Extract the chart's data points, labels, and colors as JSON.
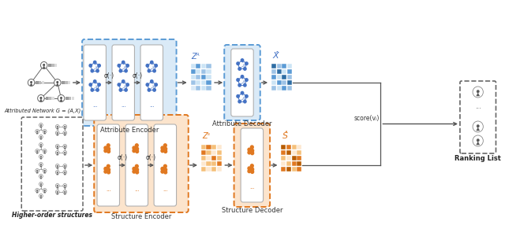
{
  "bg_color": "#ffffff",
  "blue_box_color": "#daeaf7",
  "blue_border": "#5b9bd5",
  "orange_box_color": "#fce4cc",
  "orange_border": "#e07820",
  "dashed_border": "#666666",
  "blue_node_color": "#4472c4",
  "orange_node_color": "#e07820",
  "labels": {
    "attr_network": "Attributed Network G = (A,X)",
    "attr_encoder": "Attribute Encoder",
    "attr_decoder": "Attribute Decoder",
    "higher_order": "Higher-order structures",
    "struct_encoder": "Structure Encoder",
    "struct_decoder": "Structure Decoder",
    "ranking_list": "Ranking List",
    "score": "score(vᵢ)",
    "Z_A": "Zᴬ",
    "Z_S": "Zˢ",
    "X_hat": "X̂",
    "S_hat": "Ś̂",
    "sigma": "σ(·)"
  },
  "blue_matrix_colors": [
    [
      "#cce4f5",
      "#5b9bd5",
      "#cce4f5",
      "#9dc3e6"
    ],
    [
      "#5b9bd5",
      "#cce4f5",
      "#9dc3e6",
      "#cce4f5"
    ],
    [
      "#cce4f5",
      "#9dc3e6",
      "#5b9bd5",
      "#cce4f5"
    ],
    [
      "#9dc3e6",
      "#cce4f5",
      "#cce4f5",
      "#5b9bd5"
    ],
    [
      "#daeaf7",
      "#9dc3e6",
      "#cce4f5",
      "#9dc3e6"
    ]
  ],
  "blue_matrix2_colors": [
    [
      "#2e6da4",
      "#9dc3e6",
      "#5b9bd5",
      "#cce4f5"
    ],
    [
      "#9dc3e6",
      "#2e6da4",
      "#cce4f5",
      "#5b9bd5"
    ],
    [
      "#5b9bd5",
      "#cce4f5",
      "#2e6da4",
      "#9dc3e6"
    ],
    [
      "#cce4f5",
      "#5b9bd5",
      "#9dc3e6",
      "#2e6da4"
    ],
    [
      "#9dc3e6",
      "#cce4f5",
      "#5b9bd5",
      "#9dc3e6"
    ]
  ],
  "orange_matrix_colors": [
    [
      "#f5c07a",
      "#e07820",
      "#f5c07a",
      "#fde8d0"
    ],
    [
      "#e07820",
      "#f5c07a",
      "#fde8d0",
      "#f5c07a"
    ],
    [
      "#f5c07a",
      "#fde8d0",
      "#e07820",
      "#f5c07a"
    ],
    [
      "#fde8d0",
      "#f5c07a",
      "#f5c07a",
      "#e07820"
    ],
    [
      "#f5c07a",
      "#fde8d0",
      "#f5c07a",
      "#fde8d0"
    ]
  ],
  "orange_matrix2_colors": [
    [
      "#b85c00",
      "#e07820",
      "#f5c07a",
      "#fde8d0"
    ],
    [
      "#e07820",
      "#b85c00",
      "#fde8d0",
      "#f5c07a"
    ],
    [
      "#f5c07a",
      "#fde8d0",
      "#b85c00",
      "#e07820"
    ],
    [
      "#fde8d0",
      "#f5c07a",
      "#e07820",
      "#b85c00"
    ],
    [
      "#e07820",
      "#b85c00",
      "#f5c07a",
      "#e07820"
    ]
  ]
}
